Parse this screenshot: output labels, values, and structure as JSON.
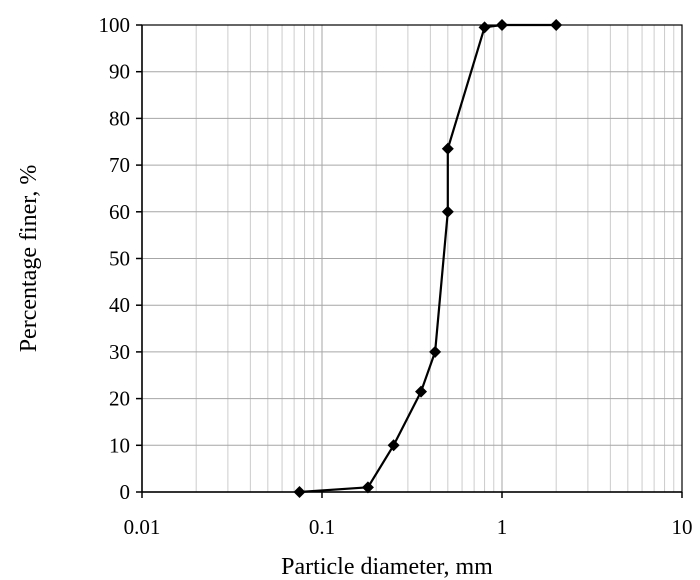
{
  "chart_data": {
    "type": "scatter",
    "xscale": "log",
    "xlabel": "Particle diameter, mm",
    "ylabel": "Percentage finer, %",
    "xlim": [
      0.01,
      10
    ],
    "ylim": [
      0,
      100
    ],
    "xticks": [
      "0.01",
      "0.1",
      "1",
      "10"
    ],
    "yticks": [
      "0",
      "10",
      "20",
      "30",
      "40",
      "50",
      "60",
      "70",
      "80",
      "90",
      "100"
    ],
    "grid": true,
    "legend": "none",
    "marker": "diamond",
    "series": [
      {
        "x": [
          0.075,
          0.18,
          0.25,
          0.355,
          0.425,
          0.5,
          0.5,
          0.8,
          1.0,
          2.0
        ],
        "y": [
          0,
          1,
          10,
          21.5,
          30,
          60,
          73.5,
          99.5,
          100,
          100
        ],
        "color": "#000000"
      }
    ]
  }
}
